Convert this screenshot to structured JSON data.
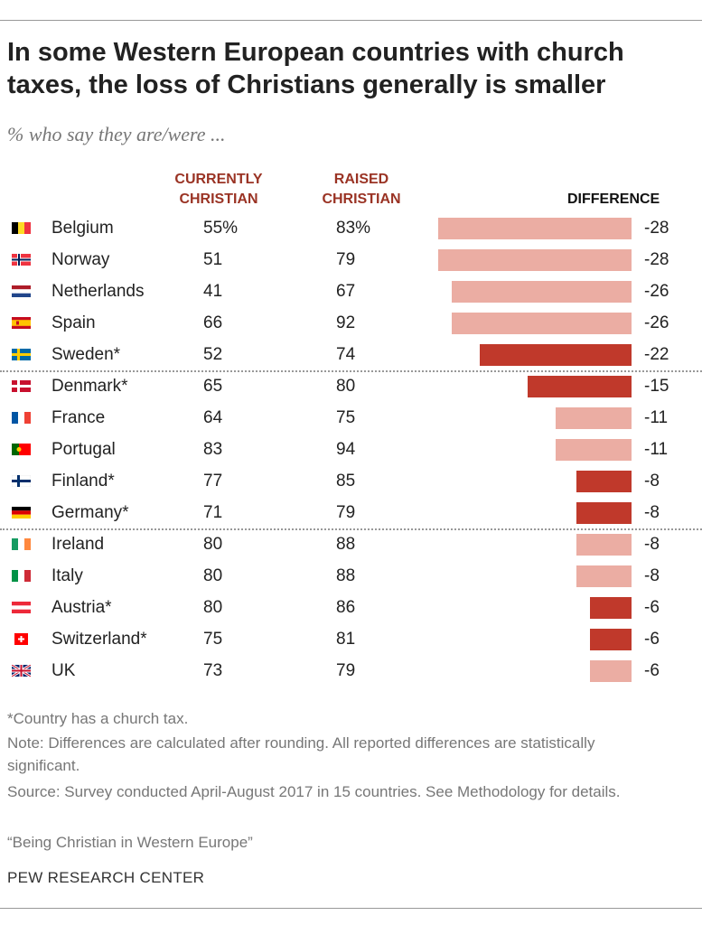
{
  "chart_data": {
    "type": "bar",
    "title": "In some Western European countries with church taxes, the loss of Christians generally is smaller",
    "subtitle": "% who say they are/were ...",
    "columns": {
      "current": "CURRENTLY CHRISTIAN",
      "raised": "RAISED CHRISTIAN",
      "difference": "DIFFERENCE"
    },
    "colors": {
      "church_tax": "#C0392B",
      "no_church_tax": "#EBADA3",
      "header": "#9A3324"
    },
    "rows": [
      {
        "country": "Belgium",
        "flag": "be",
        "current": "55%",
        "raised": "83%",
        "diff": -28,
        "label": "-28",
        "tax": false
      },
      {
        "country": "Norway",
        "flag": "no",
        "current": "51",
        "raised": "79",
        "diff": -28,
        "label": "-28",
        "tax": false
      },
      {
        "country": "Netherlands",
        "flag": "nl",
        "current": "41",
        "raised": "67",
        "diff": -26,
        "label": "-26",
        "tax": false
      },
      {
        "country": "Spain",
        "flag": "es",
        "current": "66",
        "raised": "92",
        "diff": -26,
        "label": "-26",
        "tax": false
      },
      {
        "country": "Sweden*",
        "flag": "se",
        "current": "52",
        "raised": "74",
        "diff": -22,
        "label": "-22",
        "tax": true
      },
      {
        "country": "Denmark*",
        "flag": "dk",
        "current": "65",
        "raised": "80",
        "diff": -15,
        "label": "-15",
        "tax": true
      },
      {
        "country": "France",
        "flag": "fr",
        "current": "64",
        "raised": "75",
        "diff": -11,
        "label": "-11",
        "tax": false
      },
      {
        "country": "Portugal",
        "flag": "pt",
        "current": "83",
        "raised": "94",
        "diff": -11,
        "label": "-11",
        "tax": false
      },
      {
        "country": "Finland*",
        "flag": "fi",
        "current": "77",
        "raised": "85",
        "diff": -8,
        "label": "-8",
        "tax": true
      },
      {
        "country": "Germany*",
        "flag": "de",
        "current": "71",
        "raised": "79",
        "diff": -8,
        "label": "-8",
        "tax": true
      },
      {
        "country": "Ireland",
        "flag": "ie",
        "current": "80",
        "raised": "88",
        "diff": -8,
        "label": "-8",
        "tax": false
      },
      {
        "country": "Italy",
        "flag": "it",
        "current": "80",
        "raised": "88",
        "diff": -8,
        "label": "-8",
        "tax": false
      },
      {
        "country": "Austria*",
        "flag": "at",
        "current": "80",
        "raised": "86",
        "diff": -6,
        "label": "-6",
        "tax": true
      },
      {
        "country": "Switzerland*",
        "flag": "ch",
        "current": "75",
        "raised": "81",
        "diff": -6,
        "label": "-6",
        "tax": true
      },
      {
        "country": "UK",
        "flag": "uk",
        "current": "73",
        "raised": "79",
        "diff": -6,
        "label": "-6",
        "tax": false
      }
    ],
    "xlim": [
      -28,
      0
    ]
  },
  "notes": {
    "tax": "*Country has a church tax.",
    "note": "Note: Differences are calculated after rounding. All reported differences are statistically significant.",
    "source": "Source: Survey conducted April-August 2017 in 15 countries. See Methodology for details.",
    "report": "“Being Christian in Western Europe”",
    "brand": "PEW RESEARCH CENTER"
  }
}
